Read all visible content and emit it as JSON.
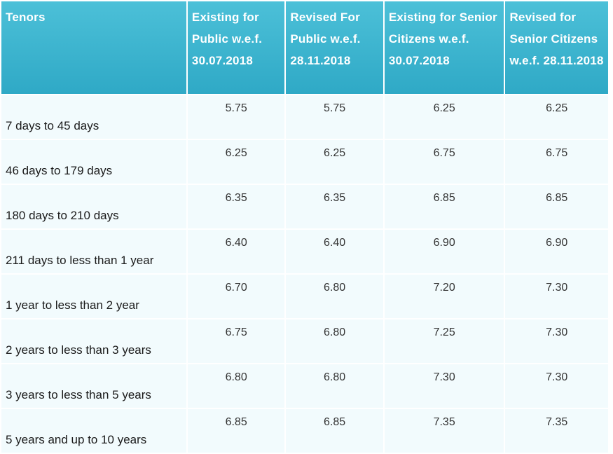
{
  "table": {
    "headers": [
      "Tenors",
      "Existing for Public w.e.f. 30.07.2018",
      "Revised For Public w.e.f. 28.11.2018",
      "Existing for Senior Citizens w.e.f. 30.07.2018",
      "Revised for Senior Citizens w.e.f. 28.11.2018"
    ],
    "rows": [
      {
        "tenor": "7 days to 45 days",
        "existing_public": "5.75",
        "revised_public": "5.75",
        "existing_senior": "6.25",
        "revised_senior": "6.25"
      },
      {
        "tenor": "46 days to 179 days",
        "existing_public": "6.25",
        "revised_public": "6.25",
        "existing_senior": "6.75",
        "revised_senior": "6.75"
      },
      {
        "tenor": "180 days to 210 days",
        "existing_public": "6.35",
        "revised_public": "6.35",
        "existing_senior": "6.85",
        "revised_senior": "6.85"
      },
      {
        "tenor": "211 days to less than 1 year",
        "existing_public": "6.40",
        "revised_public": "6.40",
        "existing_senior": "6.90",
        "revised_senior": "6.90"
      },
      {
        "tenor": "1 year to less than 2 year",
        "existing_public": "6.70",
        "revised_public": "6.80",
        "existing_senior": "7.20",
        "revised_senior": "7.30"
      },
      {
        "tenor": "2 years to less than 3 years",
        "existing_public": "6.75",
        "revised_public": "6.80",
        "existing_senior": "7.25",
        "revised_senior": "7.30"
      },
      {
        "tenor": "3 years to less than 5 years",
        "existing_public": "6.80",
        "revised_public": "6.80",
        "existing_senior": "7.30",
        "revised_senior": "7.30"
      },
      {
        "tenor": "5 years and up to 10 years",
        "existing_public": "6.85",
        "revised_public": "6.85",
        "existing_senior": "7.35",
        "revised_senior": "7.35"
      }
    ]
  },
  "colors": {
    "header_bg": "#35aecb",
    "header_text": "#ffffff",
    "row_bg": "#f2fbfd",
    "grid": "#ffffff"
  }
}
